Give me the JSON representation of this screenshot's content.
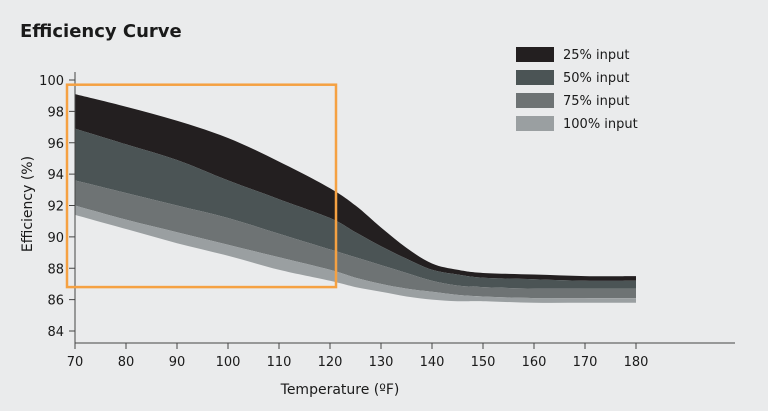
{
  "chart_data": {
    "type": "area",
    "title": "Efficiency Curve",
    "xlabel": "Temperature (ºF)",
    "ylabel": "Efficiency (%)",
    "xlim": [
      70,
      180
    ],
    "ylim": [
      84,
      100
    ],
    "x_ticks": [
      70,
      80,
      90,
      100,
      110,
      120,
      130,
      140,
      150,
      160,
      170,
      180
    ],
    "y_ticks": [
      84,
      86,
      88,
      90,
      92,
      94,
      96,
      98,
      100
    ],
    "legend_position": "top-right",
    "x": [
      70,
      80,
      90,
      100,
      110,
      120,
      125,
      130,
      135,
      140,
      145,
      150,
      160,
      170,
      180
    ],
    "series": [
      {
        "name": "25% input",
        "color": "#231f20",
        "upper": [
          99.1,
          98.3,
          97.4,
          96.3,
          94.8,
          93.1,
          92.0,
          90.6,
          89.3,
          88.3,
          87.9,
          87.7,
          87.6,
          87.5,
          87.5
        ],
        "lower": [
          96.9,
          95.9,
          94.9,
          93.6,
          92.4,
          91.2,
          90.3,
          89.4,
          88.6,
          87.9,
          87.6,
          87.4,
          87.3,
          87.2,
          87.2
        ]
      },
      {
        "name": "50% input",
        "color": "#4b5455",
        "upper": [
          96.9,
          95.9,
          94.9,
          93.6,
          92.4,
          91.2,
          90.3,
          89.4,
          88.6,
          87.9,
          87.6,
          87.4,
          87.3,
          87.2,
          87.2
        ],
        "lower": [
          93.6,
          92.8,
          92.0,
          91.2,
          90.2,
          89.2,
          88.7,
          88.2,
          87.7,
          87.2,
          86.9,
          86.8,
          86.7,
          86.7,
          86.7
        ]
      },
      {
        "name": "75% input",
        "color": "#6e7374",
        "upper": [
          93.6,
          92.8,
          92.0,
          91.2,
          90.2,
          89.2,
          88.7,
          88.2,
          87.7,
          87.2,
          86.9,
          86.8,
          86.7,
          86.7,
          86.7
        ],
        "lower": [
          92.0,
          91.1,
          90.3,
          89.5,
          88.7,
          87.9,
          87.4,
          87.0,
          86.7,
          86.5,
          86.3,
          86.2,
          86.1,
          86.1,
          86.1
        ]
      },
      {
        "name": "100% input",
        "color": "#9a9fa1",
        "upper": [
          92.0,
          91.1,
          90.3,
          89.5,
          88.7,
          87.9,
          87.4,
          87.0,
          86.7,
          86.5,
          86.3,
          86.2,
          86.1,
          86.1,
          86.1
        ],
        "lower": [
          91.4,
          90.5,
          89.6,
          88.8,
          87.9,
          87.2,
          86.8,
          86.5,
          86.2,
          86.0,
          85.9,
          85.9,
          85.8,
          85.8,
          85.8
        ]
      }
    ],
    "annotations": [
      {
        "type": "highlight-box",
        "color": "#f5a142",
        "x_range": [
          70,
          120
        ],
        "y_range": [
          86.8,
          99.7
        ]
      }
    ]
  }
}
